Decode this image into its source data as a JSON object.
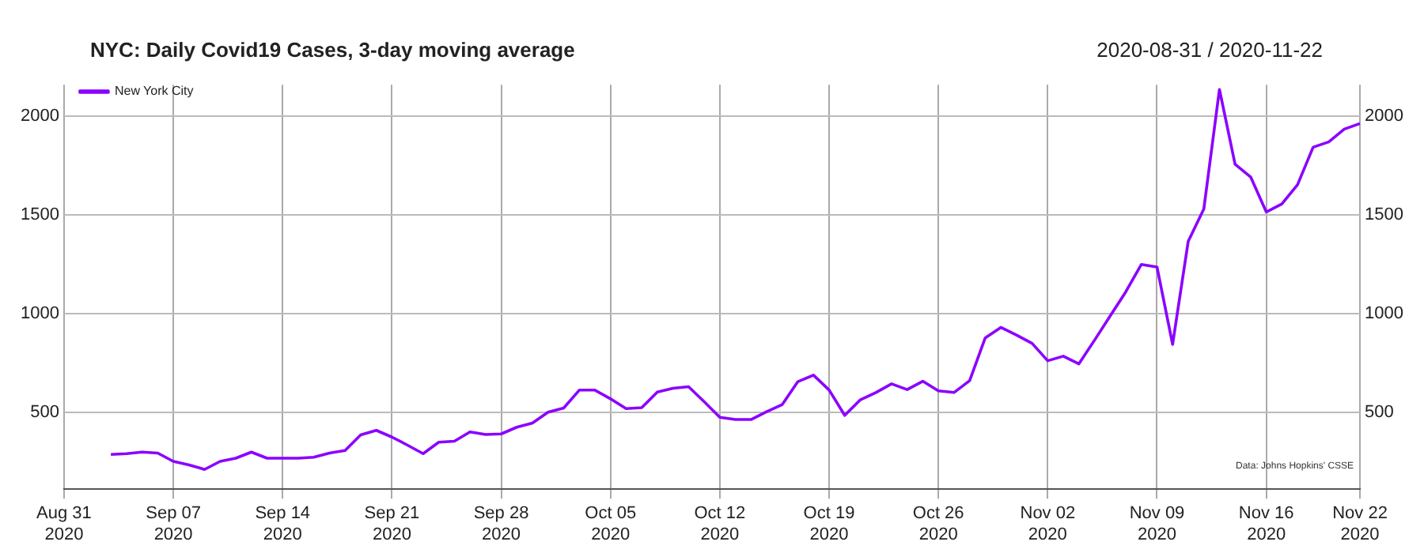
{
  "chart_data": {
    "type": "line",
    "title": "NYC: Daily Covid19 Cases, 3-day moving average",
    "subtitle": "2020-08-31 / 2020-11-22",
    "annotations": [
      "Data: Johns Hopkins' CSSE"
    ],
    "x": [
      "2020-09-03",
      "2020-09-04",
      "2020-09-05",
      "2020-09-06",
      "2020-09-07",
      "2020-09-08",
      "2020-09-09",
      "2020-09-10",
      "2020-09-11",
      "2020-09-12",
      "2020-09-13",
      "2020-09-14",
      "2020-09-15",
      "2020-09-16",
      "2020-09-17",
      "2020-09-18",
      "2020-09-19",
      "2020-09-20",
      "2020-09-21",
      "2020-09-22",
      "2020-09-23",
      "2020-09-24",
      "2020-09-25",
      "2020-09-26",
      "2020-09-27",
      "2020-09-28",
      "2020-09-29",
      "2020-09-30",
      "2020-10-01",
      "2020-10-02",
      "2020-10-03",
      "2020-10-04",
      "2020-10-05",
      "2020-10-06",
      "2020-10-07",
      "2020-10-08",
      "2020-10-09",
      "2020-10-10",
      "2020-10-11",
      "2020-10-12",
      "2020-10-13",
      "2020-10-14",
      "2020-10-15",
      "2020-10-16",
      "2020-10-17",
      "2020-10-18",
      "2020-10-19",
      "2020-10-20",
      "2020-10-21",
      "2020-10-22",
      "2020-10-23",
      "2020-10-24",
      "2020-10-25",
      "2020-10-26",
      "2020-10-27",
      "2020-10-28",
      "2020-10-29",
      "2020-10-30",
      "2020-10-31",
      "2020-11-01",
      "2020-11-02",
      "2020-11-03",
      "2020-11-04",
      "2020-11-05",
      "2020-11-06",
      "2020-11-07",
      "2020-11-08",
      "2020-11-09",
      "2020-11-10",
      "2020-11-11",
      "2020-11-12",
      "2020-11-13",
      "2020-11-14",
      "2020-11-15",
      "2020-11-16",
      "2020-11-17",
      "2020-11-18",
      "2020-11-19",
      "2020-11-20",
      "2020-11-21",
      "2020-11-22"
    ],
    "series": [
      {
        "name": "New York City",
        "color": "#8b00ff",
        "values": [
          286,
          290,
          298,
          293,
          251,
          233,
          210,
          251,
          267,
          298,
          267,
          267,
          267,
          272,
          293,
          306,
          385,
          408,
          374,
          333,
          290,
          348,
          353,
          400,
          387,
          390,
          424,
          445,
          500,
          521,
          612,
          612,
          568,
          518,
          523,
          602,
          621,
          629,
          553,
          474,
          463,
          463,
          503,
          539,
          655,
          688,
          613,
          484,
          563,
          600,
          644,
          615,
          657,
          608,
          600,
          660,
          877,
          930,
          891,
          849,
          761,
          784,
          745,
          865,
          988,
          1110,
          1249,
          1236,
          844,
          1366,
          1530,
          2136,
          1757,
          1692,
          1515,
          1556,
          1653,
          1843,
          1870,
          1935,
          1963
        ]
      }
    ],
    "xlim": [
      "2020-08-31",
      "2020-11-22"
    ],
    "xticks": [
      {
        "value": "2020-08-31",
        "label": "Aug 31\n2020"
      },
      {
        "value": "2020-09-07",
        "label": "Sep 07\n2020"
      },
      {
        "value": "2020-09-14",
        "label": "Sep 14\n2020"
      },
      {
        "value": "2020-09-21",
        "label": "Sep 21\n2020"
      },
      {
        "value": "2020-09-28",
        "label": "Sep 28\n2020"
      },
      {
        "value": "2020-10-05",
        "label": "Oct 05\n2020"
      },
      {
        "value": "2020-10-12",
        "label": "Oct 12\n2020"
      },
      {
        "value": "2020-10-19",
        "label": "Oct 19\n2020"
      },
      {
        "value": "2020-10-26",
        "label": "Oct 26\n2020"
      },
      {
        "value": "2020-11-02",
        "label": "Nov 02\n2020"
      },
      {
        "value": "2020-11-09",
        "label": "Nov 09\n2020"
      },
      {
        "value": "2020-11-16",
        "label": "Nov 16\n2020"
      },
      {
        "value": "2020-11-22",
        "label": "Nov 22\n2020"
      }
    ],
    "ylim": [
      110,
      2160
    ],
    "yticks": [
      500,
      1000,
      1500,
      2000
    ],
    "y2lim": [
      110,
      2160
    ],
    "y2ticks": [
      500,
      1000,
      1500,
      2000
    ],
    "grid": true,
    "legend": "top left",
    "marker": "none",
    "line_style": "solid"
  }
}
